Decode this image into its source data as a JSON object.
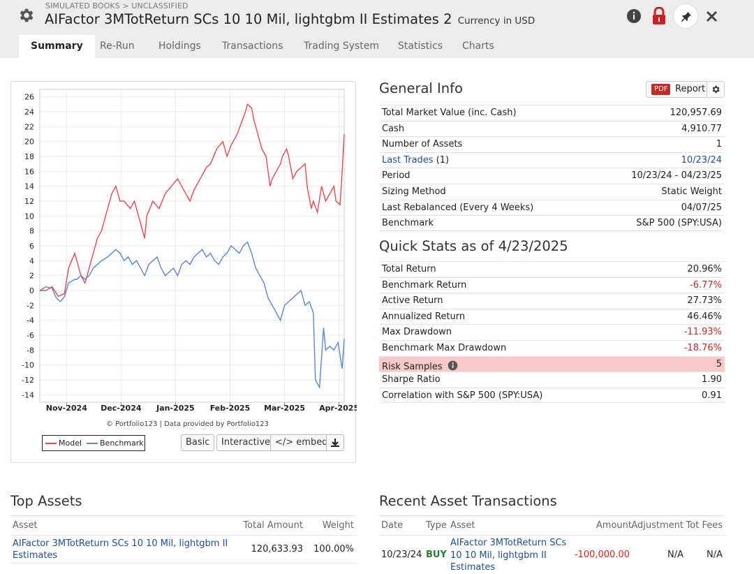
{
  "header": {
    "breadcrumb": "SIMULATED BOOKS > UNCLASSIFIED",
    "title": "AIFactor 3MTotReturn SCs 10 10 Mil, lightgbm II Estimates 2",
    "currency": "Currency in USD"
  },
  "tabs": [
    "Summary",
    "Re-Run",
    "Holdings",
    "Transactions",
    "Trading System",
    "Statistics",
    "Charts"
  ],
  "chart_data": {
    "type": "line",
    "x_ticks": [
      "Nov-2024",
      "Dec-2024",
      "Jan-2025",
      "Feb-2025",
      "Mar-2025",
      "Apr-2025"
    ],
    "ylim": [
      -15,
      27
    ],
    "y_ticks": [
      26,
      24,
      22,
      20,
      18,
      16,
      14,
      12,
      10,
      8,
      6,
      4,
      2,
      0,
      -2,
      -4,
      -6,
      -8,
      -10,
      -12,
      -14
    ],
    "grid": true,
    "legend_position": "bottom-left",
    "series": [
      {
        "name": "Model",
        "color": "#e8474c",
        "points": [
          [
            0,
            0
          ],
          [
            3,
            0
          ],
          [
            6,
            0.5
          ],
          [
            9,
            -0.8
          ],
          [
            12,
            -0.4
          ],
          [
            14,
            3
          ],
          [
            17,
            5
          ],
          [
            18,
            4
          ],
          [
            20,
            2
          ],
          [
            22,
            1
          ],
          [
            24,
            3
          ],
          [
            26,
            5
          ],
          [
            28,
            7
          ],
          [
            30,
            8
          ],
          [
            32,
            10
          ],
          [
            35,
            13
          ],
          [
            37,
            14
          ],
          [
            39,
            12
          ],
          [
            41,
            12
          ],
          [
            44,
            11
          ],
          [
            46,
            12
          ],
          [
            48,
            10
          ],
          [
            50,
            8
          ],
          [
            51,
            7
          ],
          [
            52,
            10
          ],
          [
            55,
            12
          ],
          [
            58,
            11
          ],
          [
            61,
            13
          ],
          [
            64,
            14
          ],
          [
            67,
            15
          ],
          [
            70,
            13.5
          ],
          [
            73,
            12
          ],
          [
            75,
            13.5
          ],
          [
            78,
            15
          ],
          [
            81,
            16.5
          ],
          [
            83,
            17
          ],
          [
            86,
            19
          ],
          [
            89,
            20
          ],
          [
            91,
            18
          ],
          [
            93,
            19.5
          ],
          [
            96,
            21
          ],
          [
            98,
            22.5
          ],
          [
            100,
            24
          ],
          [
            101,
            25
          ],
          [
            103,
            24.5
          ],
          [
            104,
            23
          ],
          [
            106,
            21
          ],
          [
            108,
            19
          ],
          [
            110,
            18
          ],
          [
            112,
            14
          ],
          [
            113,
            15
          ],
          [
            115,
            16
          ],
          [
            117,
            17
          ],
          [
            118,
            18
          ],
          [
            120,
            19
          ],
          [
            121,
            18
          ],
          [
            123,
            15
          ],
          [
            125,
            16
          ],
          [
            127,
            16.5
          ],
          [
            129,
            17
          ],
          [
            130,
            14
          ],
          [
            132,
            11
          ],
          [
            133,
            12
          ],
          [
            135,
            10.5
          ],
          [
            137,
            14
          ],
          [
            139,
            12
          ],
          [
            141,
            13
          ],
          [
            143,
            14
          ],
          [
            144,
            12
          ],
          [
            146,
            11.5
          ],
          [
            147,
            16
          ],
          [
            148,
            21
          ]
        ]
      },
      {
        "name": "Benchmark",
        "color": "#5b86cc",
        "points": [
          [
            0,
            0
          ],
          [
            3,
            0.5
          ],
          [
            6,
            0.3
          ],
          [
            8,
            -1
          ],
          [
            10,
            -1.5
          ],
          [
            12,
            -0.8
          ],
          [
            14,
            1
          ],
          [
            17,
            1.5
          ],
          [
            18,
            1.5
          ],
          [
            20,
            2
          ],
          [
            22,
            1.5
          ],
          [
            24,
            2
          ],
          [
            26,
            3
          ],
          [
            28,
            3.5
          ],
          [
            30,
            4
          ],
          [
            33,
            4.5
          ],
          [
            35,
            5
          ],
          [
            37,
            5.5
          ],
          [
            39,
            5
          ],
          [
            41,
            4
          ],
          [
            43,
            4.5
          ],
          [
            45,
            3.5
          ],
          [
            47,
            4
          ],
          [
            49,
            3
          ],
          [
            51,
            2
          ],
          [
            53,
            3.5
          ],
          [
            55,
            4
          ],
          [
            57,
            4.5
          ],
          [
            59,
            3
          ],
          [
            61,
            2
          ],
          [
            63,
            2.5
          ],
          [
            65,
            3
          ],
          [
            67,
            2
          ],
          [
            69,
            3.5
          ],
          [
            71,
            4
          ],
          [
            73,
            3.5
          ],
          [
            75,
            4.5
          ],
          [
            77,
            5
          ],
          [
            79,
            5.5
          ],
          [
            81,
            4.5
          ],
          [
            83,
            5
          ],
          [
            85,
            4
          ],
          [
            87,
            3.5
          ],
          [
            89,
            4.5
          ],
          [
            91,
            5
          ],
          [
            93,
            6
          ],
          [
            95,
            5.5
          ],
          [
            97,
            5
          ],
          [
            99,
            6
          ],
          [
            101,
            6.5
          ],
          [
            103,
            5
          ],
          [
            105,
            3
          ],
          [
            107,
            2
          ],
          [
            109,
            1
          ],
          [
            111,
            -1
          ],
          [
            113,
            -2
          ],
          [
            115,
            -3
          ],
          [
            117,
            -4
          ],
          [
            119,
            -2
          ],
          [
            121,
            -1.5
          ],
          [
            123,
            -1
          ],
          [
            125,
            -0.5
          ],
          [
            127,
            0
          ],
          [
            129,
            -2
          ],
          [
            131,
            -1.5
          ],
          [
            133,
            -3
          ],
          [
            134,
            -12
          ],
          [
            136,
            -13
          ],
          [
            138,
            -5
          ],
          [
            139,
            -8
          ],
          [
            141,
            -7.5
          ],
          [
            143,
            -8
          ],
          [
            145,
            -7
          ],
          [
            147,
            -10.5
          ],
          [
            148,
            -6.5
          ]
        ]
      }
    ],
    "credit": "© Portfolio123 | Data provided by Portfolio123"
  },
  "chart_buttons": {
    "basic": "Basic",
    "interactive": "Interactive",
    "embed": "</> embed"
  },
  "general_info": {
    "heading": "General Info",
    "pdf_badge": "PDF",
    "report_label": "Report",
    "rows": [
      {
        "label": "Total Market Value (inc. Cash)",
        "value": "120,957.69"
      },
      {
        "label": "Cash",
        "value": "4,910.77"
      },
      {
        "label": "Number of Assets",
        "value": "1"
      },
      {
        "label": "Last Trades",
        "label_suffix": "(1)",
        "value": "10/23/24"
      },
      {
        "label": "Period",
        "value": "10/23/24 - 04/23/25"
      },
      {
        "label": "Sizing Method",
        "value": "Static Weight"
      },
      {
        "label": "Last Rebalanced (Every 4 Weeks)",
        "value": "04/07/25"
      },
      {
        "label": "Benchmark",
        "value": "S&P 500 (SPY:USA)"
      }
    ]
  },
  "quick_stats": {
    "heading": "Quick Stats as of 4/23/2025",
    "rows": [
      {
        "label": "Total Return",
        "value": "20.96%"
      },
      {
        "label": "Benchmark Return",
        "value": "-6.77%"
      },
      {
        "label": "Active Return",
        "value": "27.73%"
      },
      {
        "label": "Annualized Return",
        "value": "46.46%"
      },
      {
        "label": "Max Drawdown",
        "value": "-11.93%"
      },
      {
        "label": "Benchmark Max Drawdown",
        "value": "-18.76%"
      },
      {
        "label": "Risk Samples",
        "value": "5"
      },
      {
        "label": "Sharpe Ratio",
        "value": "1.90"
      },
      {
        "label": "Correlation with S&P 500 (SPY:USA)",
        "value": "0.91"
      }
    ]
  },
  "top_assets": {
    "heading": "Top Assets",
    "columns": [
      "Asset",
      "Total Amount",
      "Weight"
    ],
    "row": {
      "asset": "AIFactor 3MTotReturn SCs 10 10 Mil, lightgbm II Estimates",
      "amount": "120,633.93",
      "weight": "100.00%"
    }
  },
  "recent_tx": {
    "heading": "Recent Asset Transactions",
    "columns": [
      "Date",
      "Type",
      "Asset",
      "Amount",
      "Adjustment",
      "Tot Fees"
    ],
    "row": {
      "date": "10/23/24",
      "type": "BUY",
      "asset": "AIFactor 3MTotReturn SCs 10 10 Mil, lightgbm II Estimates",
      "amount": "-100,000.00",
      "adjustment": "N/A",
      "fees": "N/A"
    }
  },
  "colors": {
    "accent_red": "#c62828",
    "link_blue": "#1f4f8f",
    "buy_green": "#2e7d32",
    "highlight": "#f8c9c9"
  }
}
